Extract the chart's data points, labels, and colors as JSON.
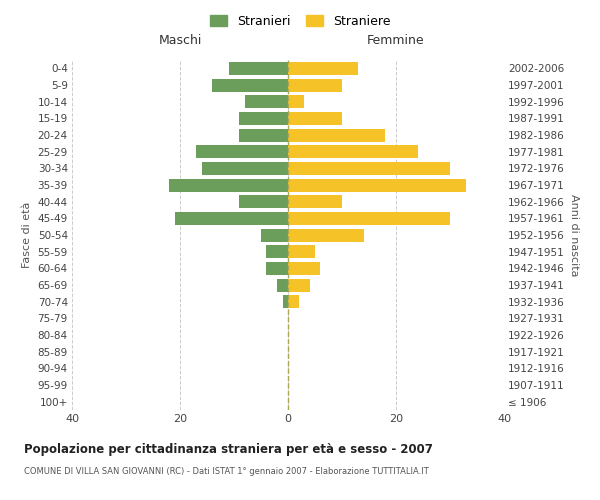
{
  "age_groups": [
    "100+",
    "95-99",
    "90-94",
    "85-89",
    "80-84",
    "75-79",
    "70-74",
    "65-69",
    "60-64",
    "55-59",
    "50-54",
    "45-49",
    "40-44",
    "35-39",
    "30-34",
    "25-29",
    "20-24",
    "15-19",
    "10-14",
    "5-9",
    "0-4"
  ],
  "birth_years": [
    "≤ 1906",
    "1907-1911",
    "1912-1916",
    "1917-1921",
    "1922-1926",
    "1927-1931",
    "1932-1936",
    "1937-1941",
    "1942-1946",
    "1947-1951",
    "1952-1956",
    "1957-1961",
    "1962-1966",
    "1967-1971",
    "1972-1976",
    "1977-1981",
    "1982-1986",
    "1987-1991",
    "1992-1996",
    "1997-2001",
    "2002-2006"
  ],
  "maschi": [
    0,
    0,
    0,
    0,
    0,
    0,
    1,
    2,
    4,
    4,
    5,
    21,
    9,
    22,
    16,
    17,
    9,
    9,
    8,
    14,
    11
  ],
  "femmine": [
    0,
    0,
    0,
    0,
    0,
    0,
    2,
    4,
    6,
    5,
    14,
    30,
    10,
    33,
    30,
    24,
    18,
    10,
    3,
    10,
    13
  ],
  "maschi_color": "#6a9e5a",
  "femmine_color": "#f5c228",
  "bg_color": "#ffffff",
  "grid_color": "#cccccc",
  "title": "Popolazione per cittadinanza straniera per età e sesso - 2007",
  "subtitle": "COMUNE DI VILLA SAN GIOVANNI (RC) - Dati ISTAT 1° gennaio 2007 - Elaborazione TUTTITALIA.IT",
  "xlabel_left": "Maschi",
  "xlabel_right": "Femmine",
  "ylabel_left": "Fasce di età",
  "ylabel_right": "Anni di nascita",
  "legend_maschi": "Stranieri",
  "legend_femmine": "Straniere",
  "xlim": 40,
  "bar_height": 0.78
}
